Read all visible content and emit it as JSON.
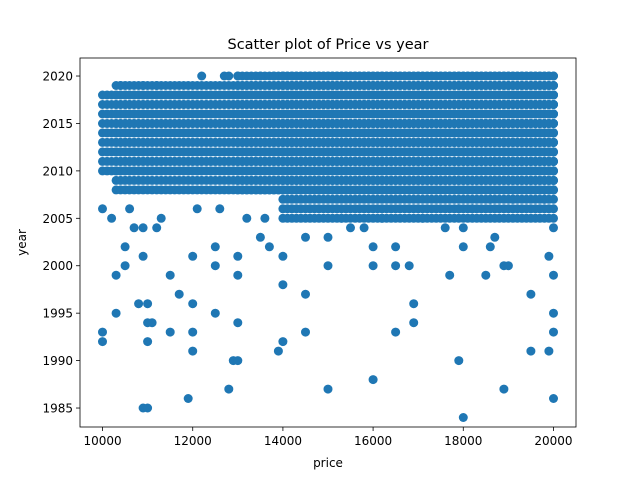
{
  "chart_data": {
    "type": "scatter",
    "title": "Scatter plot of Price vs year",
    "xlabel": "price",
    "ylabel": "year",
    "xlim": [
      9500,
      20500
    ],
    "ylim": [
      1983,
      2021.9
    ],
    "xticks": [
      10000,
      12000,
      14000,
      16000,
      18000,
      20000
    ],
    "yticks": [
      1985,
      1990,
      1995,
      2000,
      2005,
      2010,
      2015,
      2020
    ],
    "grid": false,
    "legend": "none",
    "marker_color": "#1f77b4",
    "series": [
      {
        "dense_bands": [
          {
            "x_range": [
              10000,
              20000
            ],
            "y_range": [
              2010,
              2018
            ]
          },
          {
            "x_range": [
              10300,
              20000
            ],
            "y_range": [
              2008,
              2019
            ]
          },
          {
            "x_range": [
              13000,
              20000
            ],
            "y_range": [
              2008,
              2020
            ]
          },
          {
            "x_range": [
              14000,
              20000
            ],
            "y_range": [
              2005,
              2020
            ]
          }
        ],
        "points": [
          [
            10000,
            1993
          ],
          [
            10000,
            1992
          ],
          [
            10300,
            1999
          ],
          [
            10300,
            1995
          ],
          [
            10500,
            2002
          ],
          [
            10500,
            2000
          ],
          [
            10700,
            2004
          ],
          [
            10800,
            1996
          ],
          [
            10900,
            2004
          ],
          [
            10900,
            2001
          ],
          [
            10900,
            1985
          ],
          [
            11000,
            1985
          ],
          [
            11000,
            1996
          ],
          [
            11000,
            1994
          ],
          [
            11000,
            1992
          ],
          [
            11100,
            1994
          ],
          [
            11200,
            2004
          ],
          [
            11500,
            1999
          ],
          [
            11500,
            1993
          ],
          [
            11700,
            1997
          ],
          [
            11900,
            1986
          ],
          [
            12000,
            1996
          ],
          [
            12000,
            1993
          ],
          [
            12000,
            1991
          ],
          [
            12000,
            2001
          ],
          [
            12500,
            2002
          ],
          [
            12500,
            1995
          ],
          [
            12500,
            2000
          ],
          [
            12800,
            1987
          ],
          [
            12900,
            1990
          ],
          [
            13000,
            1990
          ],
          [
            13000,
            1994
          ],
          [
            13000,
            2001
          ],
          [
            13000,
            1999
          ],
          [
            13500,
            2003
          ],
          [
            13700,
            2002
          ],
          [
            13900,
            1991
          ],
          [
            14000,
            1992
          ],
          [
            14000,
            1998
          ],
          [
            14000,
            2001
          ],
          [
            14500,
            1997
          ],
          [
            14500,
            1993
          ],
          [
            14500,
            2003
          ],
          [
            15000,
            1987
          ],
          [
            15000,
            2000
          ],
          [
            15000,
            2003
          ],
          [
            15500,
            2004
          ],
          [
            16000,
            1988
          ],
          [
            16000,
            2000
          ],
          [
            16000,
            2002
          ],
          [
            16500,
            2002
          ],
          [
            16500,
            1993
          ],
          [
            16500,
            2000
          ],
          [
            16900,
            1996
          ],
          [
            16900,
            1994
          ],
          [
            16800,
            2000
          ],
          [
            17700,
            1999
          ],
          [
            17900,
            1990
          ],
          [
            18000,
            1984
          ],
          [
            18000,
            2002
          ],
          [
            18000,
            2004
          ],
          [
            18500,
            1999
          ],
          [
            18600,
            2002
          ],
          [
            18700,
            2003
          ],
          [
            18900,
            1987
          ],
          [
            18900,
            2000
          ],
          [
            19000,
            2000
          ],
          [
            19500,
            1997
          ],
          [
            19500,
            1991
          ],
          [
            19900,
            1991
          ],
          [
            20000,
            1986
          ],
          [
            20000,
            1993
          ],
          [
            20000,
            1995
          ],
          [
            20000,
            1999
          ],
          [
            19900,
            2001
          ],
          [
            20000,
            2004
          ],
          [
            10000,
            2006
          ],
          [
            10200,
            2005
          ],
          [
            10600,
            2006
          ],
          [
            11300,
            2005
          ],
          [
            12100,
            2006
          ],
          [
            12600,
            2006
          ],
          [
            13200,
            2005
          ],
          [
            13600,
            2005
          ],
          [
            15300,
            2005
          ],
          [
            15800,
            2004
          ],
          [
            16200,
            2005
          ],
          [
            17100,
            2005
          ],
          [
            17600,
            2004
          ],
          [
            17900,
            2006
          ],
          [
            18200,
            2006
          ],
          [
            18600,
            2007
          ],
          [
            19100,
            2007
          ],
          [
            19600,
            2008
          ],
          [
            19800,
            2007
          ],
          [
            10400,
            2019
          ],
          [
            10900,
            2019
          ],
          [
            11200,
            2019
          ],
          [
            12200,
            2020
          ],
          [
            12700,
            2020
          ],
          [
            12800,
            2020
          ],
          [
            13000,
            2020
          ],
          [
            13500,
            2020
          ],
          [
            13800,
            2020
          ],
          [
            14000,
            2020
          ]
        ]
      }
    ]
  }
}
